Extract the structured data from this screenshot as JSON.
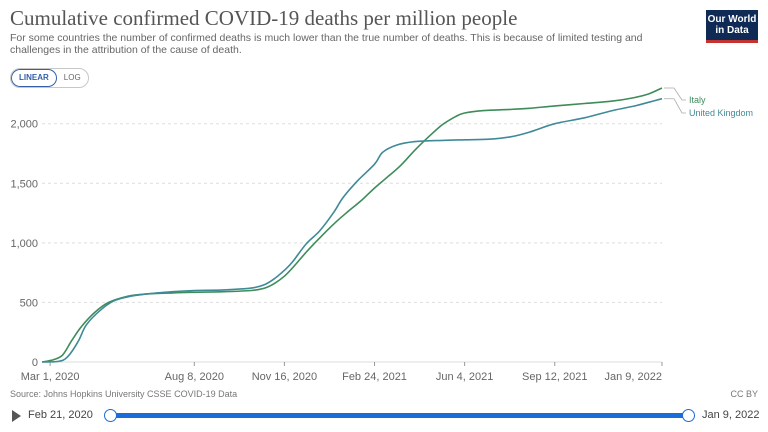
{
  "header": {
    "title": "Cumulative confirmed COVID-19 deaths per million people",
    "subtitle": "For some countries the number of confirmed deaths is much lower than the true number of deaths. This is because of limited testing and challenges in the attribution of the cause of death.",
    "logo_line1": "Our World",
    "logo_line2": "in Data"
  },
  "scale_toggle": {
    "linear": "LINEAR",
    "log": "LOG",
    "selected": "LINEAR"
  },
  "footer": {
    "source": "Source: Johns Hopkins University CSSE COVID-19 Data",
    "license": "CC BY"
  },
  "timeline": {
    "start_label": "Feb 21, 2020",
    "end_label": "Jan 9, 2022"
  },
  "colors": {
    "italy": "#3d8c5a",
    "uk": "#3f8a97",
    "grid": "#dddddd",
    "accent": "#1a6dd6"
  },
  "chart_data": {
    "type": "line",
    "title": "Cumulative confirmed COVID-19 deaths per million people",
    "xlabel": "",
    "ylabel": "",
    "x_range": [
      "2020-02-21",
      "2022-01-09"
    ],
    "ylim": [
      0,
      2300
    ],
    "yticks": [
      0,
      500,
      1000,
      1500,
      2000
    ],
    "ytick_labels": [
      "0",
      "500",
      "1,000",
      "1,500",
      "2,000"
    ],
    "xticks": [
      "2020-03-01",
      "2020-08-08",
      "2020-11-16",
      "2021-02-24",
      "2021-06-04",
      "2021-09-12",
      "2022-01-09"
    ],
    "xtick_labels": [
      "Mar 1, 2020",
      "Aug 8, 2020",
      "Nov 16, 2020",
      "Feb 24, 2021",
      "Jun 4, 2021",
      "Sep 12, 2021",
      "Jan 9, 2022"
    ],
    "grid": true,
    "legend": "right-end-labels",
    "series": [
      {
        "name": "Italy",
        "points": [
          [
            "2020-02-21",
            0
          ],
          [
            "2020-03-05",
            20
          ],
          [
            "2020-03-15",
            60
          ],
          [
            "2020-03-25",
            180
          ],
          [
            "2020-04-05",
            300
          ],
          [
            "2020-04-20",
            420
          ],
          [
            "2020-05-05",
            500
          ],
          [
            "2020-05-25",
            550
          ],
          [
            "2020-06-15",
            570
          ],
          [
            "2020-07-15",
            580
          ],
          [
            "2020-08-08",
            585
          ],
          [
            "2020-09-10",
            590
          ],
          [
            "2020-10-10",
            600
          ],
          [
            "2020-10-25",
            620
          ],
          [
            "2020-11-05",
            660
          ],
          [
            "2020-11-16",
            720
          ],
          [
            "2020-11-25",
            790
          ],
          [
            "2020-12-10",
            920
          ],
          [
            "2020-12-25",
            1040
          ],
          [
            "2021-01-10",
            1160
          ],
          [
            "2021-01-25",
            1260
          ],
          [
            "2021-02-10",
            1360
          ],
          [
            "2021-02-24",
            1460
          ],
          [
            "2021-03-10",
            1550
          ],
          [
            "2021-03-25",
            1650
          ],
          [
            "2021-04-10",
            1780
          ],
          [
            "2021-04-25",
            1890
          ],
          [
            "2021-05-10",
            1990
          ],
          [
            "2021-05-25",
            2060
          ],
          [
            "2021-06-04",
            2090
          ],
          [
            "2021-06-25",
            2110
          ],
          [
            "2021-07-25",
            2120
          ],
          [
            "2021-08-15",
            2130
          ],
          [
            "2021-09-12",
            2150
          ],
          [
            "2021-10-15",
            2170
          ],
          [
            "2021-11-15",
            2190
          ],
          [
            "2021-12-10",
            2220
          ],
          [
            "2021-12-25",
            2250
          ],
          [
            "2022-01-09",
            2300
          ]
        ]
      },
      {
        "name": "United Kingdom",
        "points": [
          [
            "2020-02-21",
            0
          ],
          [
            "2020-03-10",
            5
          ],
          [
            "2020-03-20",
            40
          ],
          [
            "2020-04-01",
            170
          ],
          [
            "2020-04-10",
            310
          ],
          [
            "2020-04-25",
            430
          ],
          [
            "2020-05-10",
            510
          ],
          [
            "2020-05-25",
            545
          ],
          [
            "2020-06-15",
            570
          ],
          [
            "2020-07-15",
            590
          ],
          [
            "2020-08-08",
            600
          ],
          [
            "2020-09-10",
            605
          ],
          [
            "2020-10-10",
            620
          ],
          [
            "2020-10-25",
            650
          ],
          [
            "2020-11-05",
            700
          ],
          [
            "2020-11-16",
            770
          ],
          [
            "2020-11-25",
            840
          ],
          [
            "2020-12-10",
            990
          ],
          [
            "2020-12-25",
            1100
          ],
          [
            "2021-01-10",
            1260
          ],
          [
            "2021-01-20",
            1380
          ],
          [
            "2021-02-05",
            1520
          ],
          [
            "2021-02-24",
            1660
          ],
          [
            "2021-03-05",
            1760
          ],
          [
            "2021-03-20",
            1820
          ],
          [
            "2021-04-10",
            1850
          ],
          [
            "2021-05-10",
            1860
          ],
          [
            "2021-06-04",
            1865
          ],
          [
            "2021-07-01",
            1870
          ],
          [
            "2021-07-25",
            1890
          ],
          [
            "2021-08-15",
            1930
          ],
          [
            "2021-09-12",
            2000
          ],
          [
            "2021-10-15",
            2050
          ],
          [
            "2021-11-15",
            2110
          ],
          [
            "2021-12-10",
            2150
          ],
          [
            "2021-12-25",
            2180
          ],
          [
            "2022-01-09",
            2210
          ]
        ]
      }
    ]
  }
}
